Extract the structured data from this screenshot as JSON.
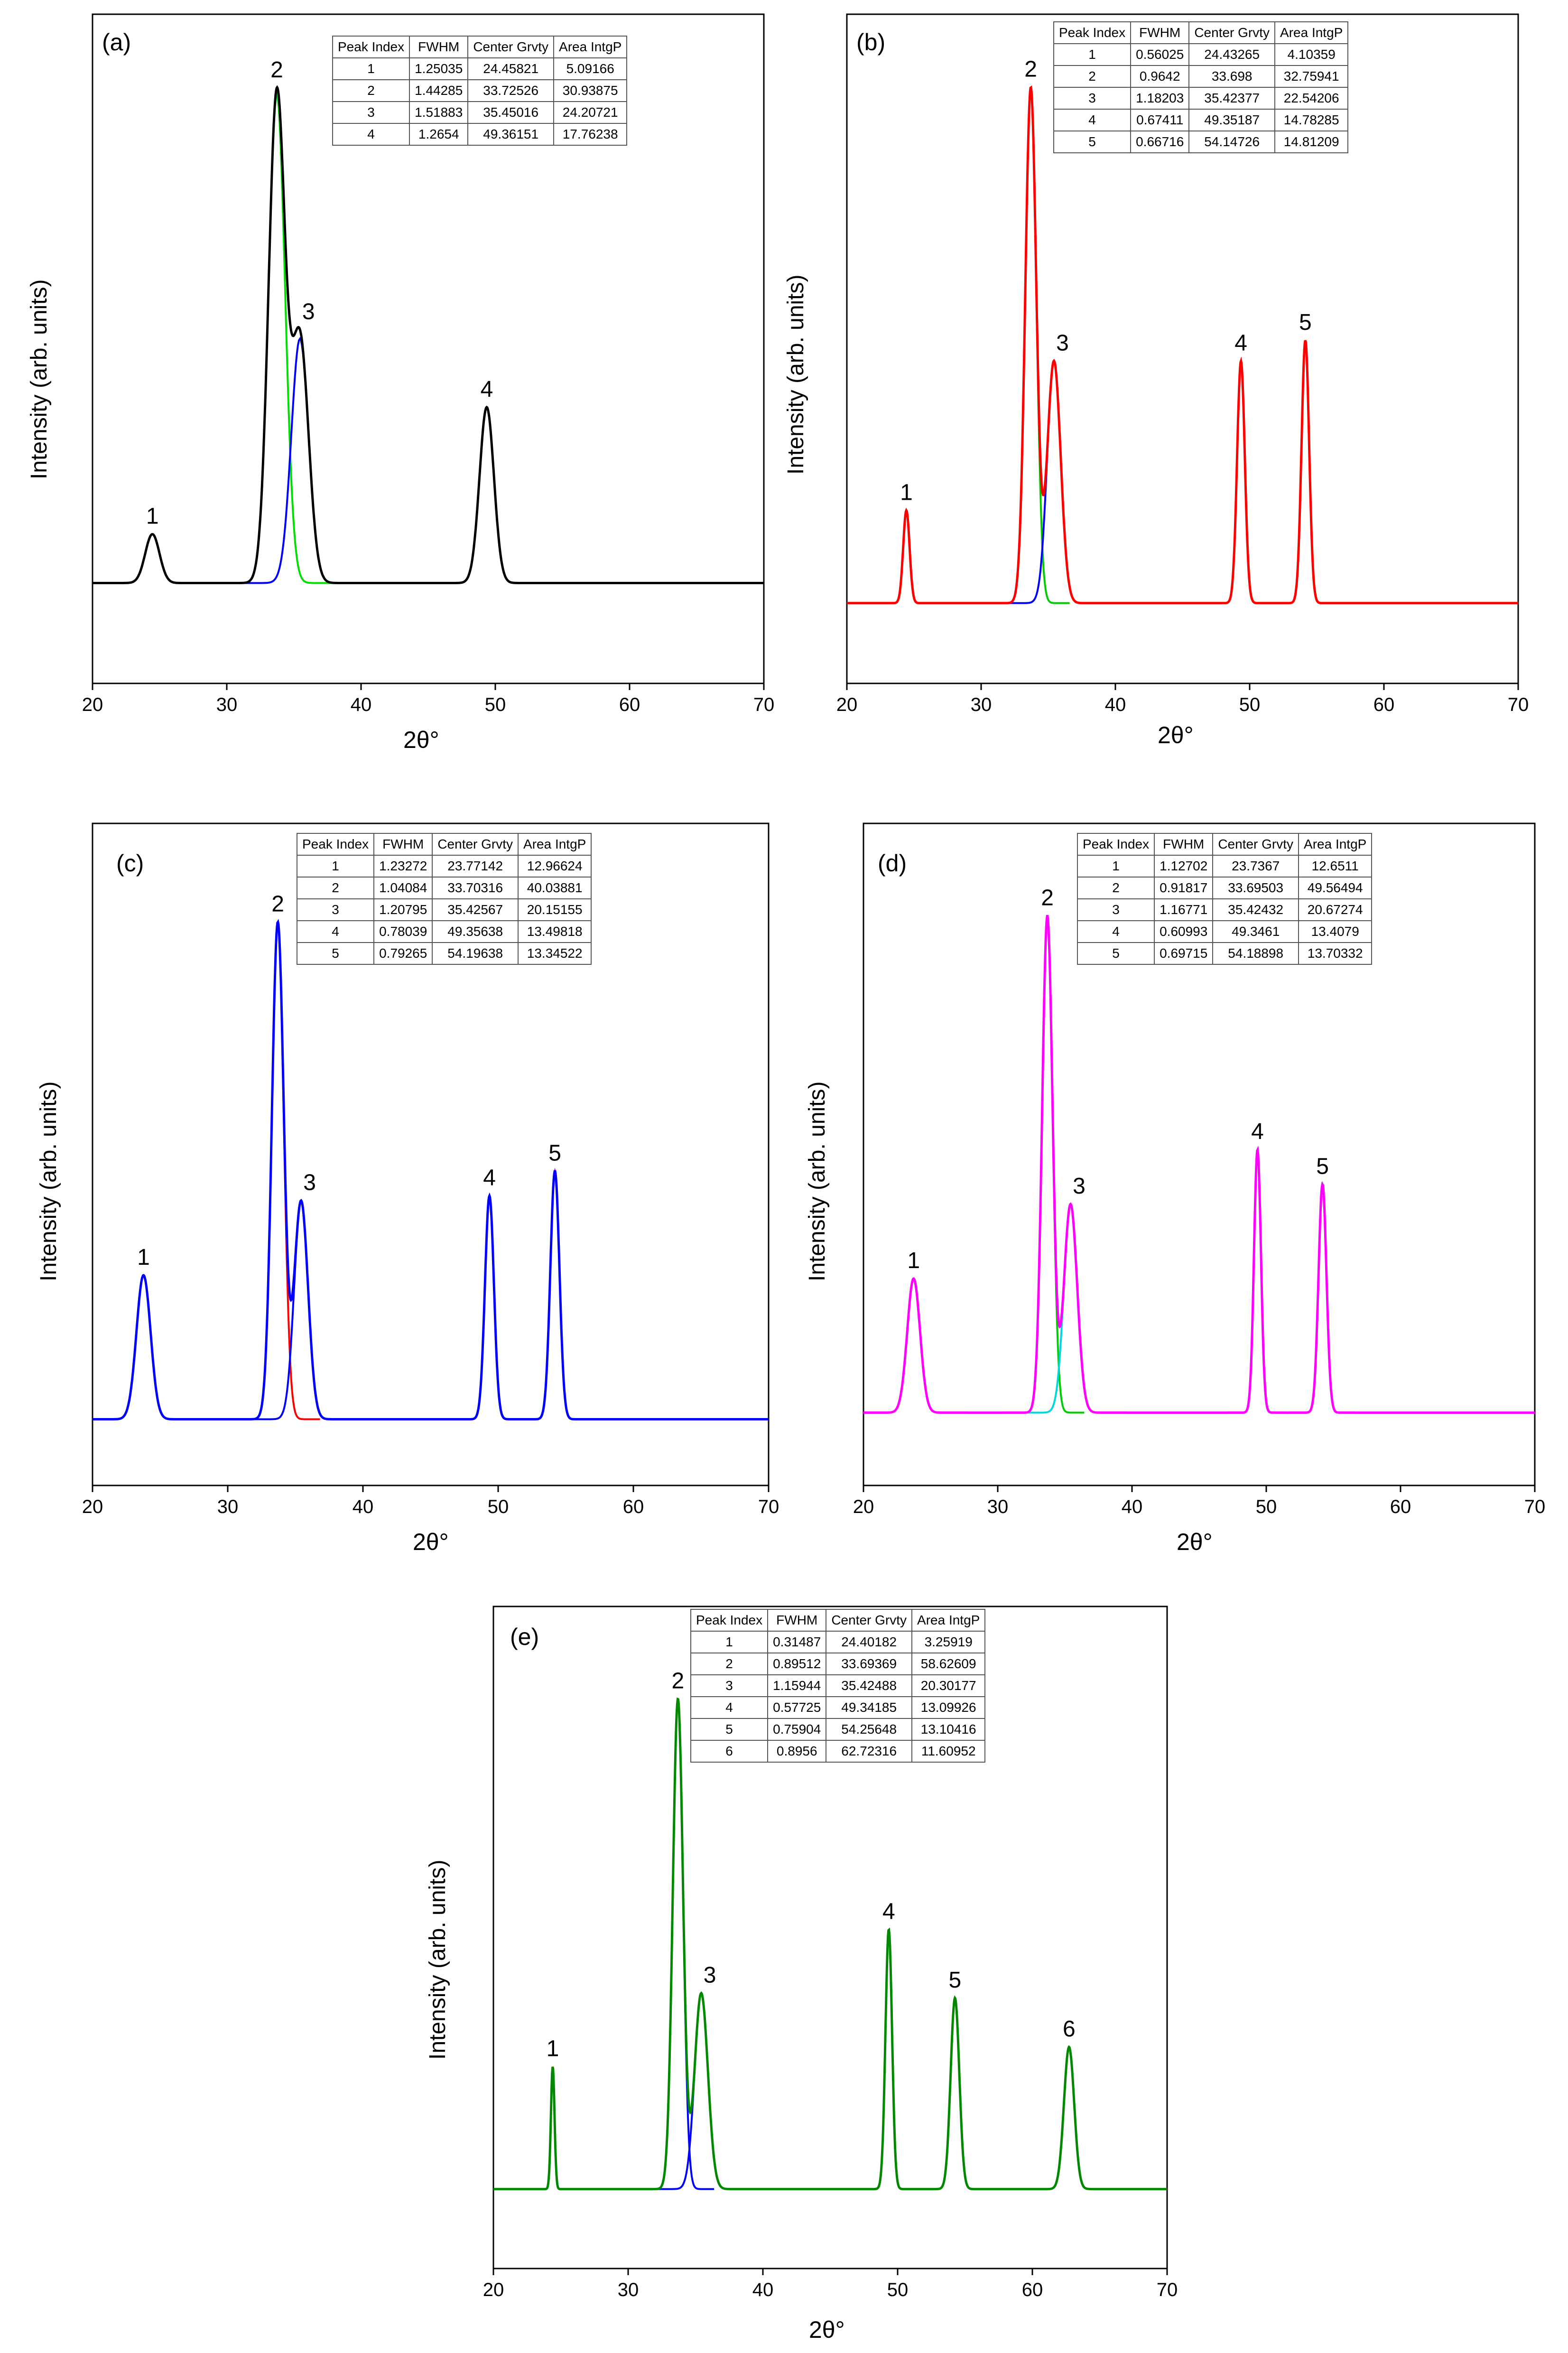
{
  "chart_data": [
    {
      "type": "line",
      "panel_label": "(a)",
      "xlabel": "2θ°",
      "ylabel": "Intensity (arb. units)",
      "xlim": [
        20,
        70
      ],
      "xticks": [
        20,
        30,
        40,
        50,
        60,
        70
      ],
      "fit_color": "#000000",
      "table_headers": [
        "Peak Index",
        "FWHM",
        "Center Grvty",
        "Area IntgP"
      ],
      "peaks": [
        {
          "index": "1",
          "fwhm": "1.25035",
          "center": "24.45821",
          "area": "5.09166",
          "height": 0.1,
          "color": "#00d8d8"
        },
        {
          "index": "2",
          "fwhm": "1.44285",
          "center": "33.72526",
          "area": "30.93875",
          "height": 1.0,
          "color": "#00dd00"
        },
        {
          "index": "3",
          "fwhm": "1.51883",
          "center": "35.45016",
          "area": "24.20721",
          "height": 0.5,
          "color": "#0000ff"
        },
        {
          "index": "4",
          "fwhm": "1.2654",
          "center": "49.36151",
          "area": "17.76238",
          "height": 0.36,
          "color": "#2222ff"
        }
      ]
    },
    {
      "type": "line",
      "panel_label": "(b)",
      "xlabel": "2θ°",
      "ylabel": "Intensity (arb. units)",
      "xlim": [
        20,
        70
      ],
      "xticks": [
        20,
        30,
        40,
        50,
        60,
        70
      ],
      "fit_color": "#ff0000",
      "table_headers": [
        "Peak Index",
        "FWHM",
        "Center Grvty",
        "Area IntgP"
      ],
      "peaks": [
        {
          "index": "1",
          "fwhm": "0.56025",
          "center": "24.43265",
          "area": "4.10359",
          "height": 0.18,
          "color": "#00d8d8"
        },
        {
          "index": "2",
          "fwhm": "0.9642",
          "center": "33.698",
          "area": "32.75941",
          "height": 1.0,
          "color": "#00cc00"
        },
        {
          "index": "3",
          "fwhm": "1.18203",
          "center": "35.42377",
          "area": "22.54206",
          "height": 0.47,
          "color": "#0000ff"
        },
        {
          "index": "4",
          "fwhm": "0.67411",
          "center": "49.35187",
          "area": "14.78285",
          "height": 0.47,
          "color": "#ff00ff"
        },
        {
          "index": "5",
          "fwhm": "0.66716",
          "center": "54.14726",
          "area": "14.81209",
          "height": 0.51,
          "color": "#00d8d8"
        }
      ]
    },
    {
      "type": "line",
      "panel_label": "(c)",
      "xlabel": "2θ°",
      "ylabel": "Intensity (arb. units)",
      "xlim": [
        20,
        70
      ],
      "xticks": [
        20,
        30,
        40,
        50,
        60,
        70
      ],
      "fit_color": "#0000ff",
      "table_headers": [
        "Peak Index",
        "FWHM",
        "Center Grvty",
        "Area IntgP"
      ],
      "peaks": [
        {
          "index": "1",
          "fwhm": "1.23272",
          "center": "23.77142",
          "area": "12.96624",
          "height": 0.29,
          "color": "#00aa00"
        },
        {
          "index": "2",
          "fwhm": "1.04084",
          "center": "33.70316",
          "area": "40.03881",
          "height": 1.0,
          "color": "#ff0000"
        },
        {
          "index": "3",
          "fwhm": "1.20795",
          "center": "35.42567",
          "area": "20.15155",
          "height": 0.44,
          "color": "#0000ff"
        },
        {
          "index": "4",
          "fwhm": "0.78039",
          "center": "49.35638",
          "area": "13.49818",
          "height": 0.45,
          "color": "#00aa00"
        },
        {
          "index": "5",
          "fwhm": "0.79265",
          "center": "54.19638",
          "area": "13.34522",
          "height": 0.5,
          "color": "#ff00ff"
        }
      ]
    },
    {
      "type": "line",
      "panel_label": "(d)",
      "xlabel": "2θ°",
      "ylabel": "Intensity (arb. units)",
      "xlim": [
        20,
        70
      ],
      "xticks": [
        20,
        30,
        40,
        50,
        60,
        70
      ],
      "fit_color": "#ff00ff",
      "table_headers": [
        "Peak Index",
        "FWHM",
        "Center Grvty",
        "Area IntgP"
      ],
      "peaks": [
        {
          "index": "1",
          "fwhm": "1.12702",
          "center": "23.7367",
          "area": "12.6511",
          "height": 0.27,
          "color": "#dddd00"
        },
        {
          "index": "2",
          "fwhm": "0.91817",
          "center": "33.69503",
          "area": "49.56494",
          "height": 1.0,
          "color": "#00cc00"
        },
        {
          "index": "3",
          "fwhm": "1.16771",
          "center": "35.42432",
          "area": "20.67274",
          "height": 0.42,
          "color": "#00d8d8"
        },
        {
          "index": "4",
          "fwhm": "0.60993",
          "center": "49.3461",
          "area": "13.4079",
          "height": 0.53,
          "color": "#dddd00"
        },
        {
          "index": "5",
          "fwhm": "0.69715",
          "center": "54.18898",
          "area": "13.70332",
          "height": 0.46,
          "color": "#00d8d8"
        }
      ]
    },
    {
      "type": "line",
      "panel_label": "(e)",
      "xlabel": "2θ°",
      "ylabel": "Intensity (arb. units)",
      "xlim": [
        20,
        70
      ],
      "xticks": [
        20,
        30,
        40,
        50,
        60,
        70
      ],
      "fit_color": "#008800",
      "table_headers": [
        "Peak Index",
        "FWHM",
        "Center Grvty",
        "Area IntgP"
      ],
      "peaks": [
        {
          "index": "1",
          "fwhm": "0.31487",
          "center": "24.40182",
          "area": "3.25919",
          "height": 0.25,
          "color": "#dddd00"
        },
        {
          "index": "2",
          "fwhm": "0.89512",
          "center": "33.69369",
          "area": "58.62609",
          "height": 1.0,
          "color": "#0000ff"
        },
        {
          "index": "3",
          "fwhm": "1.15944",
          "center": "35.42488",
          "area": "20.30177",
          "height": 0.4,
          "color": "#0000ff"
        },
        {
          "index": "4",
          "fwhm": "0.57725",
          "center": "49.34185",
          "area": "13.09926",
          "height": 0.53,
          "color": "#dddd00"
        },
        {
          "index": "5",
          "fwhm": "0.75904",
          "center": "54.25648",
          "area": "13.10416",
          "height": 0.39,
          "color": "#dddd00"
        },
        {
          "index": "6",
          "fwhm": "0.8956",
          "center": "62.72316",
          "area": "11.60952",
          "height": 0.29,
          "color": "#ff00ff"
        }
      ]
    }
  ]
}
